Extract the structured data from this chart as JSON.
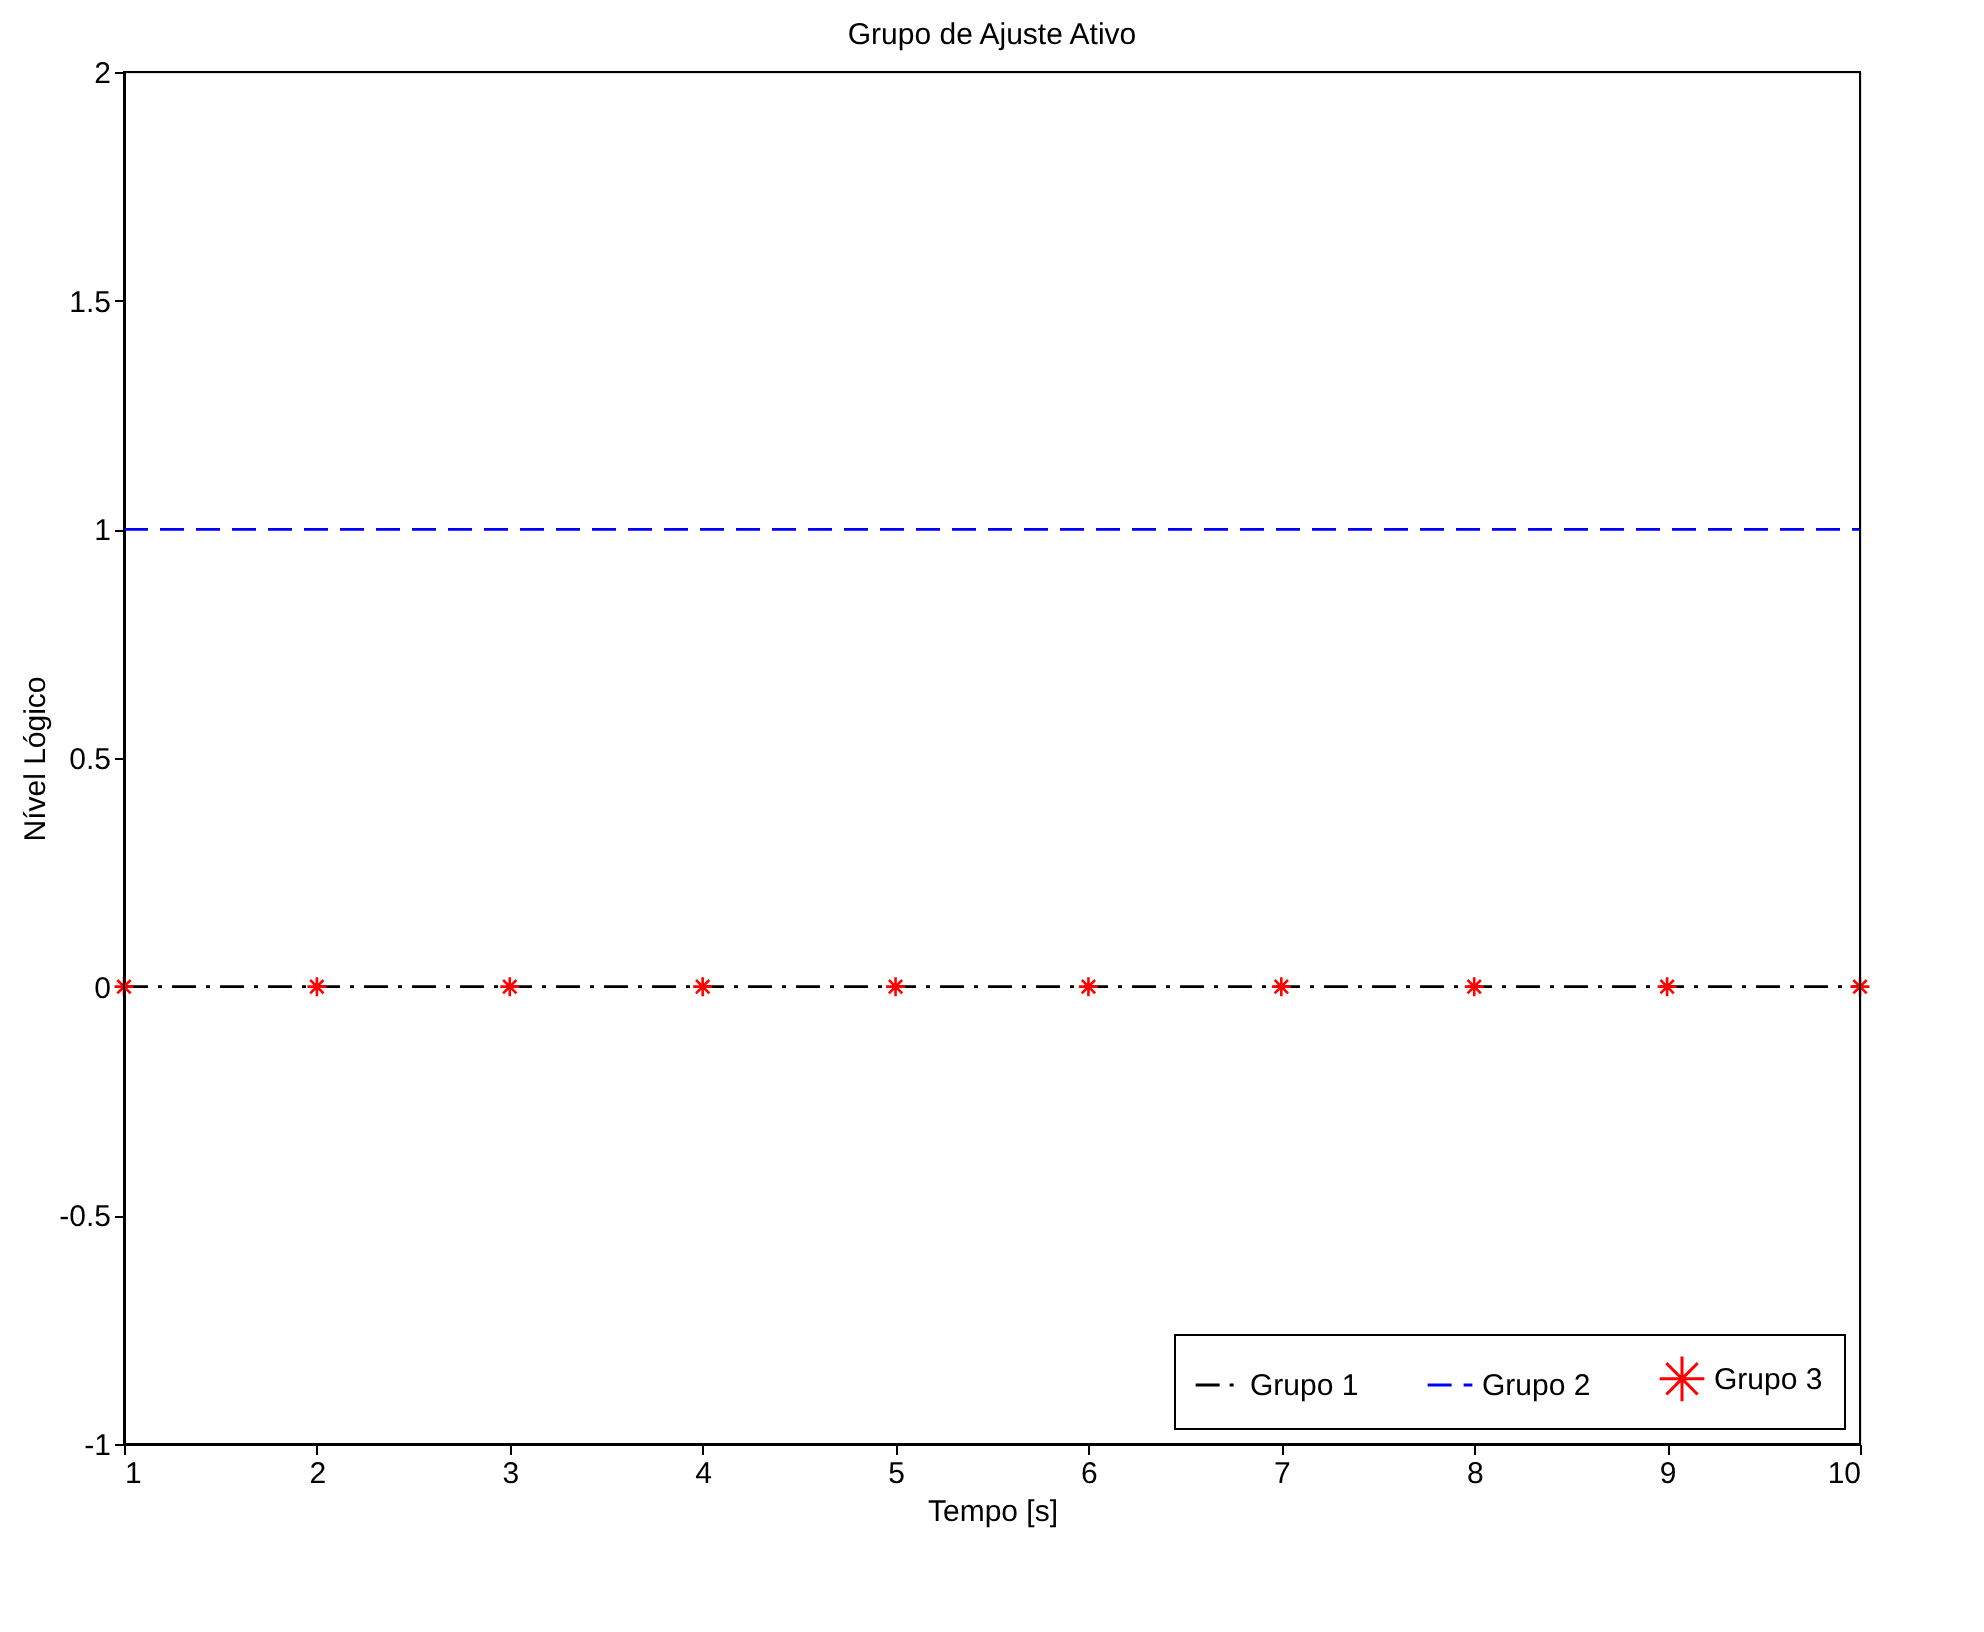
{
  "chart_data": {
    "type": "line",
    "title": "Grupo de Ajuste Ativo",
    "xlabel": "Tempo [s]",
    "ylabel": "Nível Lógico",
    "x": [
      1,
      2,
      3,
      4,
      5,
      6,
      7,
      8,
      9,
      10
    ],
    "series": [
      {
        "name": "Grupo 1",
        "color": "#000000",
        "line_style": "dashdot",
        "marker": "none",
        "values": [
          0,
          0,
          0,
          0,
          0,
          0,
          0,
          0,
          0,
          0
        ]
      },
      {
        "name": "Grupo 2",
        "color": "#0000ff",
        "line_style": "dashed",
        "marker": "none",
        "values": [
          1,
          1,
          1,
          1,
          1,
          1,
          1,
          1,
          1,
          1
        ]
      },
      {
        "name": "Grupo 3",
        "color": "#ff0000",
        "type": "scatter",
        "marker": "cross",
        "values": [
          0,
          0,
          0,
          0,
          0,
          0,
          0,
          0,
          0,
          0
        ]
      }
    ],
    "xlim": [
      1,
      10
    ],
    "xticks": [
      1,
      2,
      3,
      4,
      5,
      6,
      7,
      8,
      9,
      10
    ],
    "ylim": [
      -1,
      2
    ],
    "yticks": [
      -1,
      -0.5,
      0,
      0.5,
      1,
      1.5,
      2
    ],
    "grid": false,
    "legend": "bottom right"
  }
}
